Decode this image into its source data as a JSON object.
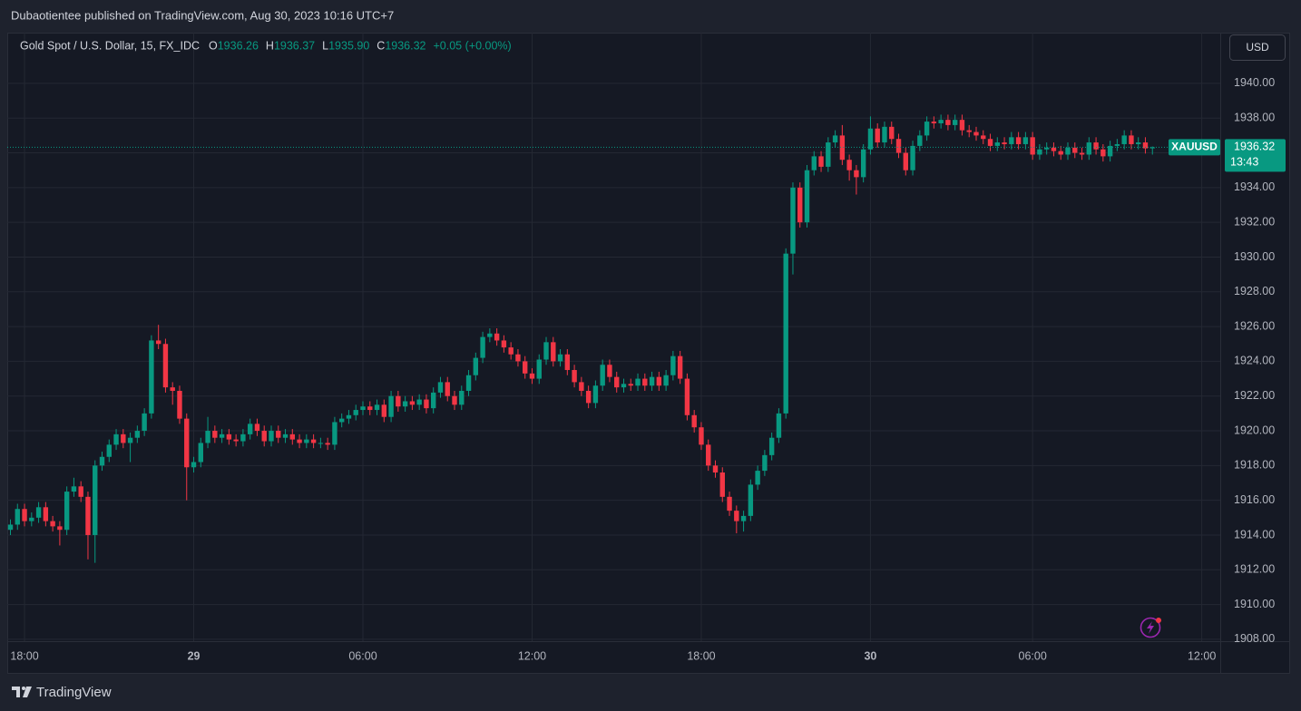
{
  "header": {
    "text": "Dubaotientee published on TradingView.com, Aug 30, 2023 10:16 UTC+7"
  },
  "chart_data": {
    "type": "candlestick",
    "title": "Gold Spot / U.S. Dollar, 15, FX_IDC",
    "legend": {
      "keys": [
        "O",
        "H",
        "L",
        "C"
      ],
      "values": [
        1936.26,
        1936.37,
        1935.9,
        1936.32
      ],
      "value_labels": [
        "1936.26",
        "1936.37",
        "1935.90",
        "1936.32"
      ]
    },
    "change": "+0.05 (+0.00%)",
    "currency": "USD",
    "symbol": "XAUUSD",
    "last_price": 1936.32,
    "countdown": "13:43",
    "up_color": "#089981",
    "down_color": "#f23645",
    "grid": true,
    "ylim": [
      1907.89,
      1942.92
    ],
    "yticks": [
      {
        "value": 1908,
        "label": "1908.00"
      },
      {
        "value": 1910,
        "label": "1910.00"
      },
      {
        "value": 1912,
        "label": "1912.00"
      },
      {
        "value": 1914,
        "label": "1914.00"
      },
      {
        "value": 1916,
        "label": "1916.00"
      },
      {
        "value": 1918,
        "label": "1918.00"
      },
      {
        "value": 1920,
        "label": "1920.00"
      },
      {
        "value": 1922,
        "label": "1922.00"
      },
      {
        "value": 1924,
        "label": "1924.00"
      },
      {
        "value": 1926,
        "label": "1926.00"
      },
      {
        "value": 1928,
        "label": "1928.00"
      },
      {
        "value": 1930,
        "label": "1930.00"
      },
      {
        "value": 1932,
        "label": "1932.00"
      },
      {
        "value": 1934,
        "label": "1934.00"
      },
      {
        "value": 1936,
        "label": "1936.00"
      },
      {
        "value": 1938,
        "label": "1938.00"
      },
      {
        "value": 1940,
        "label": "1940.00"
      }
    ],
    "categories": [
      null,
      null,
      "18:00",
      null,
      null,
      null,
      null,
      null,
      null,
      null,
      null,
      null,
      null,
      null,
      null,
      null,
      null,
      null,
      null,
      null,
      null,
      null,
      null,
      null,
      null,
      null,
      "29",
      null,
      null,
      null,
      null,
      null,
      null,
      null,
      null,
      null,
      null,
      null,
      null,
      null,
      null,
      null,
      null,
      null,
      null,
      null,
      null,
      null,
      null,
      null,
      "06:00",
      null,
      null,
      null,
      null,
      null,
      null,
      null,
      null,
      null,
      null,
      null,
      null,
      null,
      null,
      null,
      null,
      null,
      null,
      null,
      null,
      null,
      null,
      null,
      "12:00",
      null,
      null,
      null,
      null,
      null,
      null,
      null,
      null,
      null,
      null,
      null,
      null,
      null,
      null,
      null,
      null,
      null,
      null,
      null,
      null,
      null,
      null,
      null,
      "18:00",
      null,
      null,
      null,
      null,
      null,
      null,
      null,
      null,
      null,
      null,
      null,
      null,
      null,
      null,
      null,
      null,
      null,
      null,
      null,
      null,
      null,
      null,
      null,
      "30",
      null,
      null,
      null,
      null,
      null,
      null,
      null,
      null,
      null,
      null,
      null,
      null,
      null,
      null,
      null,
      null,
      null,
      null,
      null,
      null,
      null,
      null,
      "06:00",
      null,
      null,
      null,
      null,
      null,
      null,
      null,
      null,
      null,
      null,
      null,
      null,
      null,
      null,
      null,
      null,
      null,
      null,
      null,
      null,
      null,
      null,
      null,
      "12:00",
      null,
      null
    ],
    "open": [
      1914.3,
      1914.6,
      1915.5,
      1914.8,
      1915.0,
      1915.6,
      1914.8,
      1914.5,
      1914.3,
      1916.5,
      1916.8,
      1916.2,
      1914.0,
      1918.0,
      1918.5,
      1919.2,
      1919.8,
      1919.3,
      1919.6,
      1920.0,
      1921.0,
      1925.2,
      1925.0,
      1922.5,
      1922.3,
      1920.7,
      1917.9,
      1918.2,
      1919.3,
      1920.0,
      1919.6,
      1919.8,
      1919.5,
      1919.4,
      1919.8,
      1920.4,
      1920.0,
      1919.4,
      1920.0,
      1919.6,
      1919.8,
      1919.5,
      1919.3,
      1919.5,
      1919.3,
      1919.3,
      1919.2,
      1920.5,
      1920.7,
      1920.9,
      1921.2,
      1921.4,
      1921.2,
      1921.5,
      1920.8,
      1922.0,
      1921.4,
      1921.7,
      1921.5,
      1921.8,
      1921.3,
      1922.2,
      1922.8,
      1922.0,
      1921.5,
      1922.3,
      1923.2,
      1924.2,
      1925.4,
      1925.6,
      1925.2,
      1924.8,
      1924.4,
      1924.0,
      1923.3,
      1923.0,
      1924.1,
      1925.1,
      1924.0,
      1924.4,
      1923.5,
      1922.8,
      1922.3,
      1921.6,
      1922.6,
      1923.8,
      1923.1,
      1922.5,
      1922.7,
      1922.6,
      1923.0,
      1922.6,
      1923.1,
      1922.6,
      1923.2,
      1924.3,
      1923.0,
      1920.9,
      1920.2,
      1919.2,
      1918.0,
      1917.6,
      1916.2,
      1915.4,
      1914.8,
      1915.1,
      1916.9,
      1917.7,
      1918.6,
      1919.6,
      1921.0,
      1930.2,
      1934.0,
      1932.0,
      1935.0,
      1935.8,
      1935.2,
      1936.6,
      1937.0,
      1935.6,
      1935.0,
      1934.6,
      1936.2,
      1937.4,
      1936.6,
      1937.5,
      1936.8,
      1936.0,
      1935.0,
      1936.4,
      1937.0,
      1937.8,
      1937.7,
      1937.9,
      1937.6,
      1937.9,
      1937.3,
      1937.2,
      1937.0,
      1936.8,
      1936.4,
      1936.6,
      1936.5,
      1936.9,
      1936.5,
      1936.9,
      1935.9,
      1936.2,
      1936.3,
      1936.1,
      1935.9,
      1936.3,
      1936.0,
      1935.9,
      1936.6,
      1936.2,
      1935.8,
      1936.4,
      1936.5,
      1937.0,
      1936.5,
      1936.6,
      1936.26,
      null,
      null,
      null,
      null,
      null,
      null,
      null,
      null,
      null
    ],
    "high": [
      1914.9,
      1915.8,
      1915.8,
      1915.3,
      1915.9,
      1915.9,
      1915.1,
      1914.8,
      1916.8,
      1917.3,
      1917.1,
      1916.5,
      1918.3,
      1918.8,
      1919.5,
      1920.1,
      1920.1,
      1919.9,
      1920.3,
      1921.3,
      1925.5,
      1926.1,
      1925.3,
      1922.8,
      1922.6,
      1921.0,
      1918.5,
      1919.6,
      1920.8,
      1920.3,
      1920.1,
      1920.1,
      1919.8,
      1920.1,
      1920.7,
      1920.7,
      1920.3,
      1920.3,
      1920.3,
      1920.1,
      1920.1,
      1919.8,
      1919.8,
      1919.8,
      1919.6,
      1919.6,
      1920.8,
      1921.0,
      1921.2,
      1921.5,
      1921.7,
      1921.7,
      1921.8,
      1921.8,
      1922.3,
      1922.3,
      1922.0,
      1922.0,
      1922.1,
      1922.1,
      1922.5,
      1923.1,
      1923.1,
      1922.3,
      1922.6,
      1923.5,
      1924.5,
      1925.7,
      1925.9,
      1925.9,
      1925.5,
      1925.1,
      1924.7,
      1924.3,
      1923.6,
      1924.4,
      1925.4,
      1925.4,
      1924.7,
      1924.7,
      1923.8,
      1923.1,
      1922.6,
      1922.9,
      1924.1,
      1924.1,
      1923.4,
      1923.0,
      1923.0,
      1923.3,
      1923.3,
      1923.4,
      1923.4,
      1923.5,
      1924.6,
      1924.6,
      1923.3,
      1921.2,
      1920.5,
      1919.5,
      1918.3,
      1917.9,
      1916.5,
      1915.7,
      1915.4,
      1917.2,
      1918.0,
      1918.9,
      1919.9,
      1921.3,
      1930.5,
      1934.3,
      1934.3,
      1935.3,
      1936.1,
      1936.1,
      1936.9,
      1937.3,
      1937.6,
      1935.9,
      1935.3,
      1936.5,
      1938.1,
      1937.7,
      1937.8,
      1937.8,
      1937.1,
      1936.3,
      1936.7,
      1937.3,
      1938.1,
      1938.1,
      1938.2,
      1938.2,
      1938.2,
      1938.2,
      1937.6,
      1937.5,
      1937.3,
      1937.1,
      1936.9,
      1936.9,
      1937.2,
      1937.2,
      1937.2,
      1937.2,
      1936.5,
      1936.6,
      1936.6,
      1936.4,
      1936.6,
      1936.6,
      1936.3,
      1936.9,
      1936.9,
      1936.5,
      1936.7,
      1936.8,
      1937.3,
      1937.3,
      1936.9,
      1936.9,
      1936.37,
      null,
      null,
      null,
      null,
      null,
      null,
      null,
      null,
      null
    ],
    "low": [
      1914.0,
      1914.3,
      1914.5,
      1914.5,
      1914.7,
      1914.5,
      1914.2,
      1913.4,
      1914.0,
      1916.2,
      1915.9,
      1912.6,
      1912.4,
      1917.7,
      1918.2,
      1918.9,
      1919.0,
      1918.2,
      1919.3,
      1919.7,
      1920.7,
      1924.7,
      1922.2,
      1921.5,
      1920.4,
      1916.0,
      1917.6,
      1917.9,
      1919.0,
      1919.3,
      1919.3,
      1919.2,
      1919.1,
      1919.1,
      1919.5,
      1919.7,
      1919.1,
      1919.1,
      1919.3,
      1919.3,
      1919.2,
      1919.0,
      1919.0,
      1919.0,
      1919.0,
      1918.9,
      1918.9,
      1920.2,
      1920.4,
      1920.6,
      1920.9,
      1920.9,
      1920.9,
      1920.5,
      1920.5,
      1921.1,
      1921.1,
      1921.2,
      1921.2,
      1921.0,
      1921.0,
      1921.9,
      1921.7,
      1921.2,
      1921.2,
      1922.0,
      1922.9,
      1923.9,
      1925.1,
      1924.9,
      1924.5,
      1924.1,
      1923.7,
      1923.0,
      1922.7,
      1922.7,
      1923.8,
      1923.7,
      1923.7,
      1923.2,
      1922.5,
      1922.0,
      1921.3,
      1921.3,
      1922.3,
      1922.8,
      1922.2,
      1922.2,
      1922.3,
      1922.3,
      1922.3,
      1922.3,
      1922.3,
      1922.3,
      1922.9,
      1922.7,
      1920.6,
      1919.9,
      1918.9,
      1917.7,
      1917.3,
      1915.9,
      1915.1,
      1914.1,
      1914.2,
      1914.8,
      1916.6,
      1917.4,
      1918.3,
      1919.3,
      1920.7,
      1929.0,
      1931.7,
      1931.7,
      1934.7,
      1934.9,
      1934.9,
      1936.3,
      1935.3,
      1934.4,
      1933.6,
      1934.3,
      1935.9,
      1936.3,
      1936.3,
      1936.5,
      1935.7,
      1934.7,
      1934.7,
      1936.1,
      1936.7,
      1937.4,
      1937.4,
      1937.3,
      1937.3,
      1937.0,
      1936.9,
      1936.7,
      1936.5,
      1936.1,
      1936.1,
      1936.2,
      1936.2,
      1936.2,
      1936.2,
      1935.6,
      1935.6,
      1935.9,
      1935.8,
      1935.6,
      1935.6,
      1935.7,
      1935.6,
      1935.6,
      1935.9,
      1935.5,
      1935.5,
      1936.1,
      1936.2,
      1936.2,
      1936.2,
      1935.96,
      1935.9,
      null,
      null,
      null,
      null,
      null,
      null,
      null,
      null,
      null
    ],
    "close": [
      1914.6,
      1915.5,
      1914.8,
      1915.0,
      1915.6,
      1914.8,
      1914.5,
      1914.3,
      1916.5,
      1916.8,
      1916.2,
      1914.0,
      1918.0,
      1918.5,
      1919.2,
      1919.8,
      1919.3,
      1919.6,
      1920.0,
      1921.0,
      1925.2,
      1925.0,
      1922.5,
      1922.3,
      1920.7,
      1917.9,
      1918.2,
      1919.3,
      1920.0,
      1919.6,
      1919.8,
      1919.5,
      1919.4,
      1919.8,
      1920.4,
      1920.0,
      1919.4,
      1920.0,
      1919.6,
      1919.8,
      1919.5,
      1919.3,
      1919.5,
      1919.3,
      1919.3,
      1919.2,
      1920.5,
      1920.7,
      1920.9,
      1921.2,
      1921.4,
      1921.2,
      1921.5,
      1920.8,
      1922.0,
      1921.4,
      1921.7,
      1921.5,
      1921.8,
      1921.3,
      1922.2,
      1922.8,
      1922.0,
      1921.5,
      1922.3,
      1923.2,
      1924.2,
      1925.4,
      1925.6,
      1925.2,
      1924.8,
      1924.4,
      1924.0,
      1923.3,
      1923.0,
      1924.1,
      1925.1,
      1924.0,
      1924.4,
      1923.5,
      1922.8,
      1922.3,
      1921.6,
      1922.6,
      1923.8,
      1923.1,
      1922.5,
      1922.7,
      1922.6,
      1923.0,
      1922.6,
      1923.1,
      1922.6,
      1923.2,
      1924.3,
      1923.0,
      1920.9,
      1920.2,
      1919.2,
      1918.0,
      1917.6,
      1916.2,
      1915.4,
      1914.8,
      1915.1,
      1916.9,
      1917.7,
      1918.6,
      1919.6,
      1921.0,
      1930.2,
      1934.0,
      1932.0,
      1935.0,
      1935.8,
      1935.2,
      1936.6,
      1937.0,
      1935.6,
      1935.0,
      1934.6,
      1936.2,
      1937.4,
      1936.6,
      1937.5,
      1936.8,
      1936.0,
      1935.0,
      1936.4,
      1937.0,
      1937.8,
      1937.7,
      1937.9,
      1937.6,
      1937.9,
      1937.3,
      1937.2,
      1937.0,
      1936.8,
      1936.4,
      1936.6,
      1936.5,
      1936.9,
      1936.5,
      1936.9,
      1935.9,
      1936.2,
      1936.3,
      1936.1,
      1935.9,
      1936.3,
      1936.0,
      1935.9,
      1936.6,
      1936.2,
      1935.8,
      1936.4,
      1936.5,
      1937.0,
      1936.5,
      1936.6,
      1936.26,
      1936.32,
      null,
      null,
      null,
      null,
      null,
      null,
      null,
      null,
      null
    ]
  },
  "footer": {
    "brand": "TradingView"
  }
}
